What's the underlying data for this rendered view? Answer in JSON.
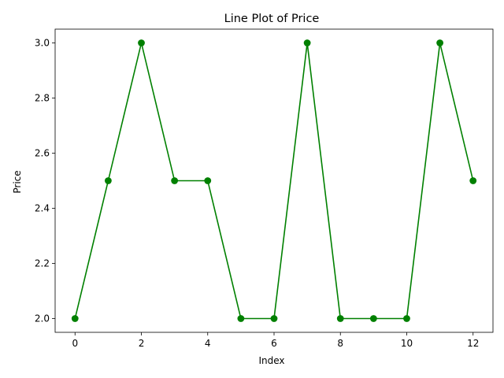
{
  "chart_data": {
    "type": "line",
    "title": "Line Plot of Price",
    "xlabel": "Index",
    "ylabel": "Price",
    "xlim": [
      -0.6,
      12.6
    ],
    "ylim": [
      1.95,
      3.05
    ],
    "xticks": [
      0,
      2,
      4,
      6,
      8,
      10,
      12
    ],
    "xtick_labels": [
      "0",
      "2",
      "4",
      "6",
      "8",
      "10",
      "12"
    ],
    "yticks": [
      2.0,
      2.2,
      2.4,
      2.6,
      2.8,
      3.0
    ],
    "ytick_labels": [
      "2.0",
      "2.2",
      "2.4",
      "2.6",
      "2.8",
      "3.0"
    ],
    "grid": false,
    "legend": "none",
    "series": [
      {
        "color": "#008000",
        "marker": "circle",
        "x": [
          0,
          1,
          2,
          3,
          4,
          5,
          6,
          7,
          8,
          9,
          10,
          11,
          12
        ],
        "y": [
          2.0,
          2.5,
          3.0,
          2.5,
          2.5,
          2.0,
          2.0,
          3.0,
          2.0,
          2.0,
          2.0,
          3.0,
          2.5
        ]
      }
    ]
  }
}
